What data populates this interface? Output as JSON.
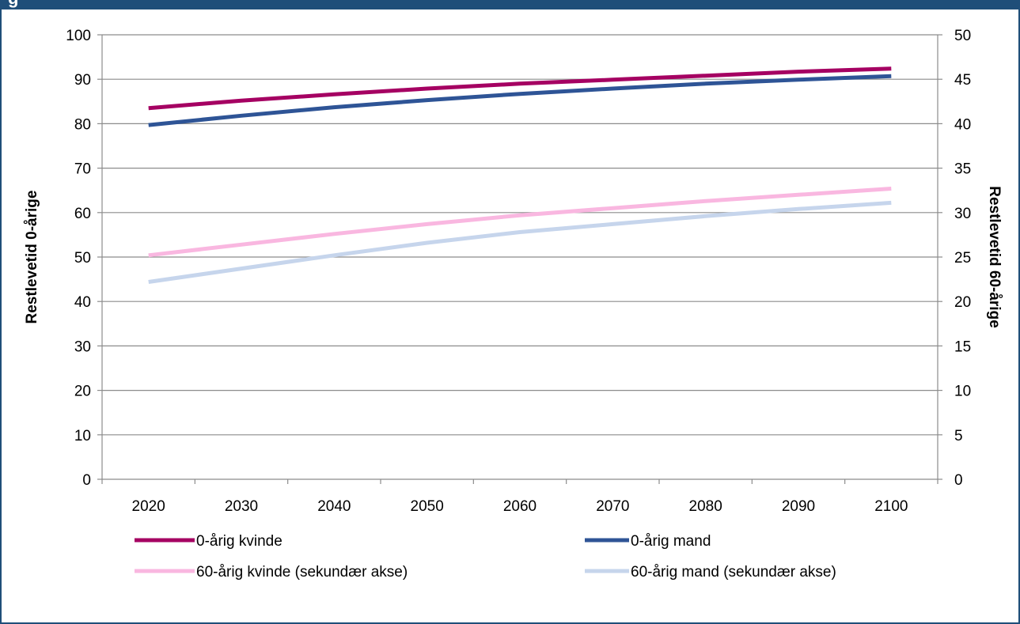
{
  "header": {
    "title_fragment": "g"
  },
  "chart_data": {
    "type": "line",
    "title": "",
    "x": [
      2020,
      2030,
      2040,
      2050,
      2060,
      2070,
      2080,
      2090,
      2100
    ],
    "x_tick_labels": [
      "2020",
      "2030",
      "2040",
      "2050",
      "2060",
      "2070",
      "2080",
      "2090",
      "2100"
    ],
    "ylabel": "Restlevetid 0-årige",
    "y2label": "Restlevetid 60-årige",
    "ylim": [
      0,
      100
    ],
    "y2lim": [
      0,
      50
    ],
    "y_ticks": [
      0,
      10,
      20,
      30,
      40,
      50,
      60,
      70,
      80,
      90,
      100
    ],
    "y2_ticks": [
      0,
      5,
      10,
      15,
      20,
      25,
      30,
      35,
      40,
      45,
      50
    ],
    "grid": true,
    "legend_position": "bottom",
    "series": [
      {
        "name": "0-årig kvinde",
        "axis": "primary",
        "color": "#a50062",
        "values": [
          83.5,
          85.2,
          86.6,
          87.9,
          89.0,
          89.9,
          90.8,
          91.7,
          92.4
        ]
      },
      {
        "name": "0-årig mand",
        "axis": "primary",
        "color": "#2e5496",
        "values": [
          79.7,
          81.8,
          83.7,
          85.3,
          86.7,
          87.9,
          89.0,
          89.9,
          90.7
        ]
      },
      {
        "name": "60-årig kvinde (sekundær akse)",
        "axis": "secondary",
        "color": "#f9b7e0",
        "values": [
          25.2,
          26.4,
          27.6,
          28.7,
          29.7,
          30.5,
          31.3,
          32.0,
          32.7
        ]
      },
      {
        "name": "60-årig mand (sekundær akse)",
        "axis": "secondary",
        "color": "#c6d5ec",
        "values": [
          22.2,
          23.7,
          25.2,
          26.6,
          27.8,
          28.7,
          29.6,
          30.4,
          31.1
        ]
      }
    ]
  }
}
